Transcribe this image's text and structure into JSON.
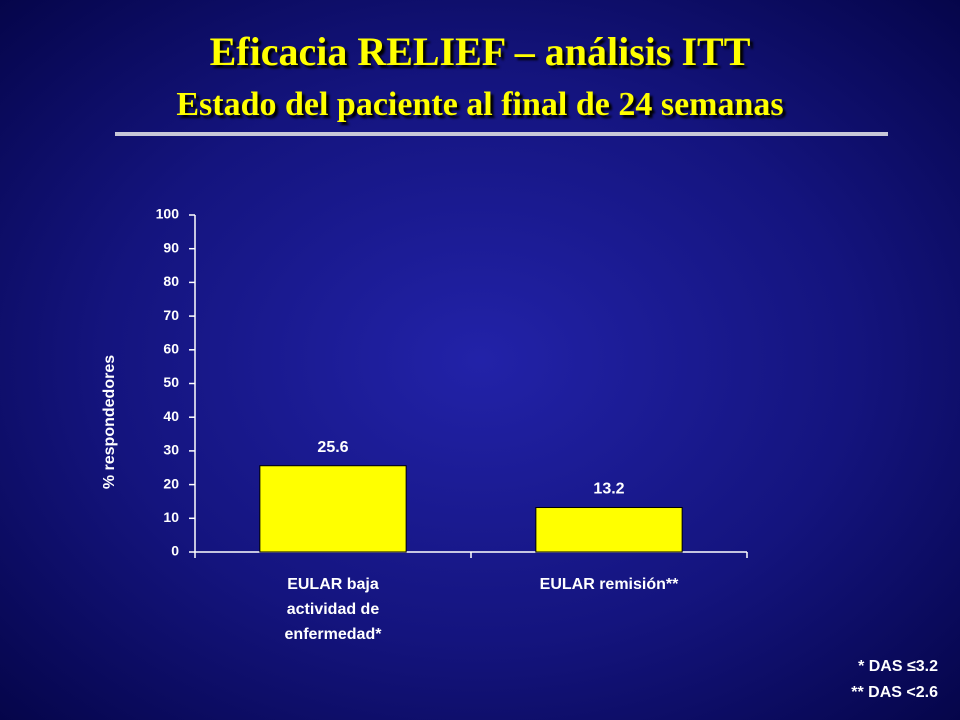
{
  "chart_data": {
    "type": "bar",
    "title": "Eficacia RELIEF – análisis ITT",
    "subtitle": "Estado del paciente al final de 24 semanas",
    "y_label": "% respondedores",
    "categories": [
      "EULAR baja actividad de enfermedad*",
      "EULAR remisión**"
    ],
    "values": [
      25.6,
      13.2
    ],
    "color": "#ffff00",
    "ylim": [
      0,
      100
    ],
    "yticks": [
      0,
      10,
      20,
      30,
      40,
      50,
      60,
      70,
      80,
      90,
      100
    ],
    "grid": false,
    "annotations": [
      "* DAS ≤3.2",
      "** DAS <2.6"
    ]
  }
}
